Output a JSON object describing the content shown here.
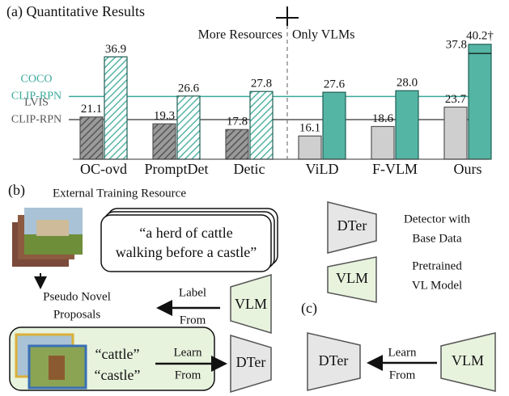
{
  "chart_data": {
    "type": "bar",
    "title": "(a) Quantitative Results",
    "categories": [
      "OC-ovd",
      "PromptDet",
      "Detic",
      "ViLD",
      "F-VLM",
      "Ours"
    ],
    "series": [
      {
        "color": "#cfcfcf",
        "hatched": [
          true,
          true,
          true,
          false,
          false,
          false
        ],
        "values": [
          21.1,
          19.3,
          17.8,
          16.1,
          18.6,
          23.7
        ]
      },
      {
        "color": "#55b5a4",
        "hatched": [
          true,
          true,
          true,
          false,
          false,
          false
        ],
        "values": [
          36.9,
          26.6,
          27.8,
          27.6,
          28.0,
          37.8
        ],
        "value_labels": [
          "36.9",
          "26.6",
          "27.8",
          "27.6",
          "28.0",
          "37.8"
        ]
      }
    ],
    "top_value": {
      "value": 40.2,
      "label": "40.2†"
    },
    "ylim": [
      10,
      42.5
    ],
    "reference_lines": [
      {
        "label": [
          "COCO",
          "CLIP-RPN"
        ],
        "value": 26.5,
        "color": "#3aa99a"
      },
      {
        "label": [
          "LVIS",
          "CLIP-RPN"
        ],
        "value": 20.4,
        "color": "#555555"
      }
    ],
    "annotations": [
      "More Resources",
      "Only VLMs"
    ]
  },
  "panel_b": {
    "label": "(b)",
    "resource_title": "External Training Resource",
    "caption": [
      "“a herd of cattle",
      "walking before a castle”"
    ],
    "proposals": [
      "Pseudo Novel",
      "Proposals"
    ],
    "label_from": [
      "Label",
      "From"
    ],
    "vlm": "VLM",
    "learn_from": [
      "Learn",
      "From"
    ],
    "dter": "DTer",
    "words": [
      "“cattle”",
      "“castle”"
    ]
  },
  "legend": {
    "dter": "DTer",
    "dter_desc": [
      "Detector with",
      "Base Data"
    ],
    "vlm": "VLM",
    "vlm_desc": [
      "Pretrained",
      "VL Model"
    ]
  },
  "panel_c": {
    "label": "(c)",
    "dter": "DTer",
    "learn_from": [
      "Learn",
      "From"
    ],
    "vlm": "VLM"
  }
}
